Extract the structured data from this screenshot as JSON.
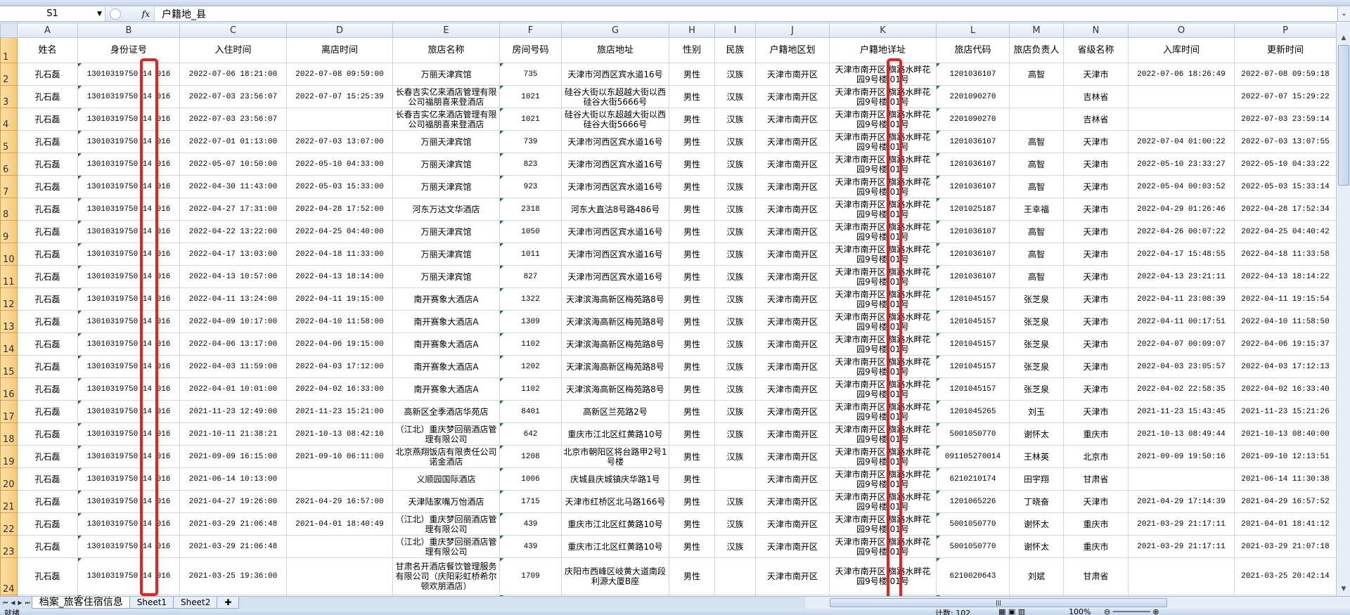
{
  "formula_bar": {
    "name_box": "S1",
    "fx_label": "fx",
    "formula": "户籍地_县"
  },
  "columns": [
    "A",
    "B",
    "C",
    "D",
    "E",
    "F",
    "G",
    "H",
    "I",
    "J",
    "K",
    "L",
    "M",
    "N",
    "O",
    "P"
  ],
  "headers": [
    "姓名",
    "身份证号",
    "入住时间",
    "离店时间",
    "旅店名称",
    "房间号码",
    "旅店地址",
    "性别",
    "民族",
    "户籍地区划",
    "户籍地详址",
    "旅店代码",
    "旅店负责人",
    "省级名称",
    "入库时间",
    "更新时间"
  ],
  "rows": [
    {
      "num": "2",
      "cells": [
        "孔石磊",
        "13010319750 14 016",
        "2022-07-06 18:21:00",
        "2022-07-08 09:59:00",
        "万丽天津宾馆",
        "735",
        "天津市河西区宾水道16号",
        "男性",
        "汉族",
        "天津市南开区",
        "天津市南开区 旗路水畔花园9号楼 01号",
        "1201036107",
        "高智",
        "天津市",
        "2022-07-06 18:26:49",
        "2022-07-08 09:59:18"
      ]
    },
    {
      "num": "3",
      "cells": [
        "孔石磊",
        "13010319750 14 016",
        "2022-07-03 23:56:07",
        "2022-07-07 15:25:39",
        "长春吉实亿来酒店管理有限公司福朋喜来登酒店",
        "1021",
        "硅谷大街以东超越大街以西硅谷大街5666号",
        "男性",
        "汉族",
        "天津市南开区",
        "天津市南开区 旗路水畔花园9号楼 01号",
        "2201090270",
        "",
        "吉林省",
        "",
        "2022-07-07 15:29:22"
      ]
    },
    {
      "num": "4",
      "cells": [
        "孔石磊",
        "13010319750 14 016",
        "2022-07-03 23:56:07",
        "",
        "长春吉实亿来酒店管理有限公司福朋喜来登酒店",
        "1021",
        "硅谷大街以东超越大街以西硅谷大街5666号",
        "男性",
        "汉族",
        "天津市南开区",
        "天津市南开区 旗路水畔花园9号楼 01号",
        "2201090270",
        "",
        "吉林省",
        "",
        "2022-07-03 23:59:14"
      ]
    },
    {
      "num": "5",
      "cells": [
        "孔石磊",
        "13010319750 14 016",
        "2022-07-01 01:13:00",
        "2022-07-03 13:07:00",
        "万丽天津宾馆",
        "739",
        "天津市河西区宾水道16号",
        "男性",
        "汉族",
        "天津市南开区",
        "天津市南开区 旗路水畔花园9号楼 01号",
        "1201036107",
        "高智",
        "天津市",
        "2022-07-04 01:00:22",
        "2022-07-03 13:07:55"
      ]
    },
    {
      "num": "6",
      "cells": [
        "孔石磊",
        "13010319750 14 016",
        "2022-05-07 10:50:00",
        "2022-05-10 04:33:00",
        "万丽天津宾馆",
        "823",
        "天津市河西区宾水道16号",
        "男性",
        "汉族",
        "天津市南开区",
        "天津市南开区 旗路水畔花园9号楼 01号",
        "1201036107",
        "高智",
        "天津市",
        "2022-05-10 23:33:27",
        "2022-05-10 04:33:22"
      ]
    },
    {
      "num": "7",
      "cells": [
        "孔石磊",
        "13010319750 14 016",
        "2022-04-30 11:43:00",
        "2022-05-03 15:33:00",
        "万丽天津宾馆",
        "923",
        "天津市河西区宾水道16号",
        "男性",
        "汉族",
        "天津市南开区",
        "天津市南开区 旗路水畔花园9号楼 01号",
        "1201036107",
        "高智",
        "天津市",
        "2022-05-04 00:03:52",
        "2022-05-03 15:33:14"
      ]
    },
    {
      "num": "8",
      "cells": [
        "孔石磊",
        "13010319750 14 016",
        "2022-04-27 17:31:00",
        "2022-04-28 17:52:00",
        "河东万达文华酒店",
        "2318",
        "河东大直沽8号路486号",
        "男性",
        "汉族",
        "天津市南开区",
        "天津市南开区 旗路水畔花园9号楼 01号",
        "1201025187",
        "王幸福",
        "天津市",
        "2022-04-29 01:26:46",
        "2022-04-28 17:52:34"
      ]
    },
    {
      "num": "9",
      "cells": [
        "孔石磊",
        "13010319750 14 016",
        "2022-04-22 13:22:00",
        "2022-04-25 04:40:00",
        "万丽天津宾馆",
        "1050",
        "天津市河西区宾水道16号",
        "男性",
        "汉族",
        "天津市南开区",
        "天津市南开区 旗路水畔花园9号楼 01号",
        "1201036107",
        "高智",
        "天津市",
        "2022-04-26 00:07:22",
        "2022-04-25 04:40:42"
      ]
    },
    {
      "num": "10",
      "cells": [
        "孔石磊",
        "13010319750 14 016",
        "2022-04-17 13:03:00",
        "2022-04-18 11:33:00",
        "万丽天津宾馆",
        "1011",
        "天津市河西区宾水道16号",
        "男性",
        "汉族",
        "天津市南开区",
        "天津市南开区 旗路水畔花园9号楼 01号",
        "1201036107",
        "高智",
        "天津市",
        "2022-04-17 15:48:55",
        "2022-04-18 11:33:58"
      ]
    },
    {
      "num": "11",
      "cells": [
        "孔石磊",
        "13010319750 14 016",
        "2022-04-13 10:57:00",
        "2022-04-13 18:14:00",
        "万丽天津宾馆",
        "827",
        "天津市河西区宾水道16号",
        "男性",
        "汉族",
        "天津市南开区",
        "天津市南开区 旗路水畔花园9号楼 01号",
        "1201036107",
        "高智",
        "天津市",
        "2022-04-13 23:21:11",
        "2022-04-13 18:14:22"
      ]
    },
    {
      "num": "12",
      "cells": [
        "孔石磊",
        "13010319750 14 016",
        "2022-04-11 13:24:00",
        "2022-04-11 19:15:00",
        "南开赛象大酒店A",
        "1322",
        "天津滨海高新区梅苑路8号",
        "男性",
        "汉族",
        "天津市南开区",
        "天津市南开区 旗路水畔花园9号楼 01号",
        "1201045157",
        "张芝泉",
        "天津市",
        "2022-04-11 23:08:39",
        "2022-04-11 19:15:54"
      ]
    },
    {
      "num": "13",
      "cells": [
        "孔石磊",
        "13010319750 14 016",
        "2022-04-09 10:17:00",
        "2022-04-10 11:58:00",
        "南开赛象大酒店A",
        "1309",
        "天津滨海高新区梅苑路8号",
        "男性",
        "汉族",
        "天津市南开区",
        "天津市南开区 旗路水畔花园9号楼 01号",
        "1201045157",
        "张芝泉",
        "天津市",
        "2022-04-11 00:17:51",
        "2022-04-10 11:58:50"
      ]
    },
    {
      "num": "14",
      "cells": [
        "孔石磊",
        "13010319750 14 016",
        "2022-04-06 13:17:00",
        "2022-04-06 19:15:00",
        "南开赛象大酒店A",
        "1102",
        "天津滨海高新区梅苑路8号",
        "男性",
        "汉族",
        "天津市南开区",
        "天津市南开区 旗路水畔花园9号楼 01号",
        "1201045157",
        "张芝泉",
        "天津市",
        "2022-04-07 00:09:07",
        "2022-04-06 19:15:37"
      ]
    },
    {
      "num": "15",
      "cells": [
        "孔石磊",
        "13010319750 14 016",
        "2022-04-03 11:59:00",
        "2022-04-03 17:12:00",
        "南开赛象大酒店A",
        "1202",
        "天津滨海高新区梅苑路8号",
        "男性",
        "汉族",
        "天津市南开区",
        "天津市南开区 旗路水畔花园9号楼 01号",
        "1201045157",
        "张芝泉",
        "天津市",
        "2022-04-03 23:05:57",
        "2022-04-03 17:12:13"
      ]
    },
    {
      "num": "16",
      "cells": [
        "孔石磊",
        "13010319750 14 016",
        "2022-04-01 10:01:00",
        "2022-04-02 16:33:00",
        "南开赛象大酒店A",
        "1102",
        "天津滨海高新区梅苑路8号",
        "男性",
        "汉族",
        "天津市南开区",
        "天津市南开区 旗路水畔花园9号楼 01号",
        "1201045157",
        "张芝泉",
        "天津市",
        "2022-04-02 22:58:35",
        "2022-04-02 16:33:40"
      ]
    },
    {
      "num": "17",
      "cells": [
        "孔石磊",
        "13010319750 14 016",
        "2021-11-23 12:49:00",
        "2021-11-23 15:21:00",
        "高新区全季酒店华苑店",
        "8401",
        "高新区兰苑路2号",
        "男性",
        "汉族",
        "天津市南开区",
        "天津市南开区 旗路水畔花园9号楼 01号",
        "1201045265",
        "刘玉",
        "天津市",
        "2021-11-23 15:43:45",
        "2021-11-23 15:21:26"
      ]
    },
    {
      "num": "18",
      "cells": [
        "孔石磊",
        "13010319750 14 016",
        "2021-10-11 21:38:21",
        "2021-10-13 08:42:10",
        "（江北）重庆梦回丽酒店管理有限公司",
        "642",
        "重庆市江北区红黄路10号",
        "男性",
        "汉族",
        "天津市南开区",
        "天津市南开区 旗路水畔花园9号楼 01号",
        "5001050770",
        "谢怀太",
        "重庆市",
        "2021-10-13 08:49:44",
        "2021-10-13 08:40:00"
      ]
    },
    {
      "num": "19",
      "cells": [
        "孔石磊",
        "13010319750 14 016",
        "2021-09-09 16:15:00",
        "2021-09-10 06:11:00",
        "北京燕翔饭店有限责任公司诺金酒店",
        "1208",
        "北京市朝阳区将台路甲2号1号楼",
        "男性",
        "汉族",
        "天津市南开区",
        "天津市南开区 旗路水畔花园9号楼 01号",
        "091105270014",
        "王林英",
        "北京市",
        "2021-09-09 19:50:16",
        "2021-09-10 12:13:51"
      ]
    },
    {
      "num": "20",
      "cells": [
        "孔石磊",
        "13010319750 14 016",
        "2021-06-14 10:13:00",
        "",
        "义顺园国际酒店",
        "1006",
        "庆城县庆城镇庆华路1号",
        "男性",
        "",
        "天津市南开区",
        "天津市南开区 旗路水畔花园9号楼 01号",
        "6210210174",
        "田宇翔",
        "甘肃省",
        "",
        "2021-06-14 11:30:38"
      ]
    },
    {
      "num": "21",
      "cells": [
        "孔石磊",
        "13010319750 14 016",
        "2021-04-27 19:26:00",
        "2021-04-29 16:57:00",
        "天津陆家嘴万怡酒店",
        "1715",
        "天津市红桥区北马路166号",
        "男性",
        "汉族",
        "天津市南开区",
        "天津市南开区 旗路水畔花园9号楼 01号",
        "1201065226",
        "丁晓奋",
        "天津市",
        "2021-04-29 17:14:39",
        "2021-04-29 16:57:52"
      ]
    },
    {
      "num": "22",
      "cells": [
        "孔石磊",
        "13010319750 14 016",
        "2021-03-29 21:06:48",
        "2021-04-01 18:40:49",
        "（江北）重庆梦回丽酒店管理有限公司",
        "439",
        "重庆市江北区红黄路10号",
        "男性",
        "汉族",
        "天津市南开区",
        "天津市南开区 旗路水畔花园9号楼 01号",
        "5001050770",
        "谢怀太",
        "重庆市",
        "2021-03-29 21:17:11",
        "2021-04-01 18:41:12"
      ]
    },
    {
      "num": "23",
      "cells": [
        "孔石磊",
        "13010319750 14 016",
        "2021-03-29 21:06:48",
        "",
        "（江北）重庆梦回丽酒店管理有限公司",
        "439",
        "重庆市江北区红黄路10号",
        "男性",
        "汉族",
        "天津市南开区",
        "天津市南开区 旗路水畔花园9号楼 01号",
        "5001050770",
        "谢怀太",
        "重庆市",
        "2021-03-29 21:17:11",
        "2021-03-29 21:07:18"
      ]
    },
    {
      "num": "24",
      "cells": [
        "孔石磊",
        "13010319750 14 016",
        "2021-03-25 19:36:00",
        "",
        "甘肃名开酒店餐饮管理服务有限公司（庆阳彩虹桥希尔顿欢朋酒店）",
        "1709",
        "庆阳市西峰区岐黄大道南段利源大厦B座",
        "男性",
        "",
        "天津市南开区",
        "天津市南开区 旗路水畔花园9号楼 01号",
        "6210020643",
        "刘斌",
        "甘肃省",
        "",
        "2021-03-25 20:42:14"
      ]
    }
  ],
  "sheet_tabs": [
    "档案_旅客住宿信息",
    "Sheet1",
    "Sheet2"
  ],
  "status": {
    "ready": "就绪",
    "count": "计数: 102",
    "zoom": "100%"
  },
  "colors": {
    "highlight_box": "#e8231f",
    "row_header": "#f6c874"
  }
}
